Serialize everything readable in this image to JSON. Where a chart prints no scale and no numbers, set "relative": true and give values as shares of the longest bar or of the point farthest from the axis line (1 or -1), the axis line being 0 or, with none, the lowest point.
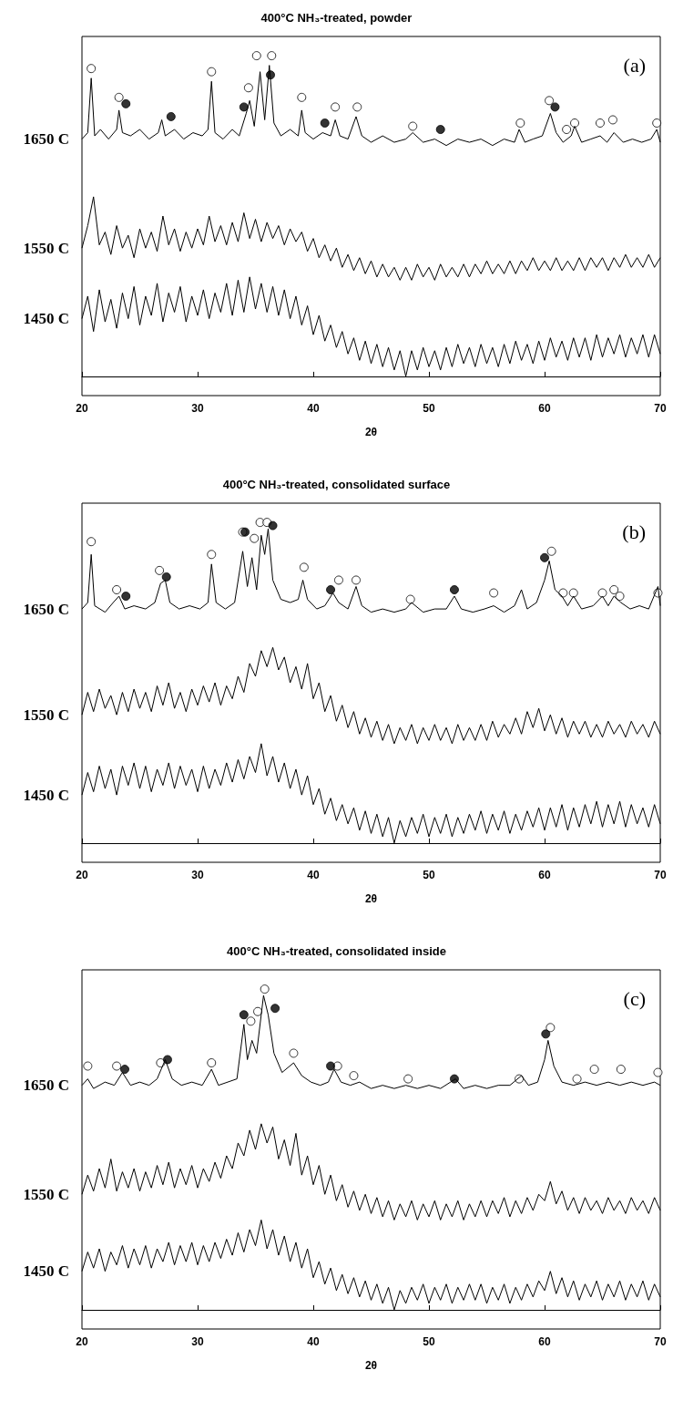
{
  "chart_data": [
    {
      "type": "line",
      "title": "400°C NH₃-treated, powder",
      "xlabel": "2θ",
      "annotations": [
        "(a)"
      ],
      "relative": true,
      "xlim": [
        20,
        70
      ],
      "xticks": [
        20,
        30,
        40,
        50,
        60,
        70
      ],
      "grid": false,
      "legend": false,
      "line_style": "solid",
      "x": [
        20,
        20.5,
        21,
        21.5,
        22,
        22.5,
        23,
        23.5,
        24,
        24.5,
        25,
        25.5,
        26,
        26.5,
        27,
        27.5,
        28,
        28.5,
        29,
        29.5,
        30,
        30.5,
        31,
        31.5,
        32,
        32.5,
        33,
        33.5,
        34,
        34.5,
        35,
        35.5,
        36,
        36.5,
        37,
        37.5,
        38,
        38.5,
        39,
        39.5,
        40,
        40.5,
        41,
        41.5,
        42,
        42.5,
        43,
        43.5,
        44,
        44.5,
        45,
        45.5,
        46,
        46.5,
        47,
        47.5,
        48,
        48.5,
        49,
        49.5,
        50,
        50.5,
        51,
        51.5,
        52,
        52.5,
        53,
        53.5,
        54,
        54.5,
        55,
        55.5,
        56,
        56.5,
        57,
        57.5,
        58,
        58.5,
        59,
        59.5,
        60,
        60.5,
        61,
        61.5,
        62,
        62.5,
        63,
        63.5,
        64,
        64.5,
        65,
        65.5,
        66,
        66.5,
        67,
        67.5,
        68,
        68.5,
        69,
        69.5,
        70
      ],
      "series": [
        {
          "name": "1650 C",
          "color": "#000000",
          "x": [
            20,
            20.5,
            20.8,
            21.1,
            21.6,
            22.3,
            23,
            23.2,
            23.5,
            24.2,
            25,
            25.8,
            26.6,
            26.9,
            27.2,
            28,
            28.8,
            29.6,
            30.4,
            30.9,
            31.2,
            31.5,
            32.2,
            33,
            33.6,
            34.2,
            34.5,
            34.9,
            35.4,
            35.8,
            36.2,
            36.6,
            37.2,
            38,
            38.7,
            39,
            39.3,
            40,
            40.8,
            41.5,
            41.9,
            42.3,
            43,
            43.7,
            44.2,
            45,
            46,
            47,
            48,
            48.6,
            49.5,
            50.5,
            51.5,
            52.5,
            53.5,
            54.5,
            55.5,
            56.5,
            57.4,
            57.8,
            58.3,
            59,
            59.8,
            60.5,
            61,
            61.6,
            62.3,
            62.6,
            63.2,
            64,
            64.8,
            65.4,
            66,
            66.8,
            67.6,
            68.4,
            69.2,
            69.7,
            70
          ],
          "values": [
            0.74,
            0.76,
            0.93,
            0.75,
            0.77,
            0.74,
            0.77,
            0.83,
            0.76,
            0.75,
            0.77,
            0.74,
            0.76,
            0.8,
            0.75,
            0.77,
            0.74,
            0.76,
            0.75,
            0.77,
            0.92,
            0.76,
            0.74,
            0.77,
            0.75,
            0.82,
            0.86,
            0.78,
            0.95,
            0.8,
            0.97,
            0.79,
            0.75,
            0.77,
            0.75,
            0.83,
            0.76,
            0.74,
            0.76,
            0.75,
            0.8,
            0.75,
            0.74,
            0.81,
            0.75,
            0.73,
            0.75,
            0.73,
            0.74,
            0.76,
            0.73,
            0.74,
            0.72,
            0.74,
            0.73,
            0.74,
            0.72,
            0.74,
            0.73,
            0.77,
            0.73,
            0.74,
            0.75,
            0.82,
            0.76,
            0.73,
            0.75,
            0.78,
            0.73,
            0.74,
            0.75,
            0.73,
            0.76,
            0.73,
            0.74,
            0.73,
            0.74,
            0.77,
            0.73
          ]
        },
        {
          "name": "1550 C",
          "color": "#000000",
          "values": [
            0.4,
            0.47,
            0.56,
            0.41,
            0.45,
            0.38,
            0.47,
            0.4,
            0.44,
            0.37,
            0.46,
            0.4,
            0.45,
            0.39,
            0.5,
            0.41,
            0.46,
            0.39,
            0.45,
            0.4,
            0.46,
            0.41,
            0.5,
            0.42,
            0.47,
            0.41,
            0.48,
            0.42,
            0.51,
            0.43,
            0.49,
            0.42,
            0.48,
            0.43,
            0.47,
            0.41,
            0.46,
            0.42,
            0.45,
            0.39,
            0.43,
            0.37,
            0.41,
            0.36,
            0.4,
            0.34,
            0.38,
            0.33,
            0.37,
            0.32,
            0.36,
            0.31,
            0.35,
            0.31,
            0.34,
            0.3,
            0.34,
            0.3,
            0.35,
            0.31,
            0.34,
            0.3,
            0.35,
            0.31,
            0.34,
            0.31,
            0.35,
            0.31,
            0.35,
            0.32,
            0.36,
            0.32,
            0.35,
            0.32,
            0.36,
            0.32,
            0.36,
            0.33,
            0.37,
            0.33,
            0.36,
            0.33,
            0.37,
            0.33,
            0.36,
            0.33,
            0.37,
            0.33,
            0.37,
            0.34,
            0.37,
            0.33,
            0.37,
            0.34,
            0.38,
            0.34,
            0.37,
            0.34,
            0.38,
            0.34,
            0.37
          ]
        },
        {
          "name": "1450 C",
          "color": "#000000",
          "values": [
            0.18,
            0.25,
            0.14,
            0.27,
            0.17,
            0.24,
            0.15,
            0.26,
            0.18,
            0.28,
            0.16,
            0.25,
            0.19,
            0.29,
            0.17,
            0.26,
            0.2,
            0.28,
            0.17,
            0.25,
            0.19,
            0.27,
            0.18,
            0.26,
            0.2,
            0.29,
            0.19,
            0.3,
            0.2,
            0.31,
            0.21,
            0.29,
            0.2,
            0.28,
            0.19,
            0.27,
            0.18,
            0.25,
            0.16,
            0.22,
            0.13,
            0.19,
            0.11,
            0.16,
            0.09,
            0.14,
            0.07,
            0.12,
            0.05,
            0.11,
            0.04,
            0.1,
            0.03,
            0.09,
            0.02,
            0.08,
            0.0,
            0.08,
            0.02,
            0.09,
            0.03,
            0.08,
            0.02,
            0.09,
            0.03,
            0.1,
            0.04,
            0.09,
            0.03,
            0.1,
            0.04,
            0.09,
            0.03,
            0.1,
            0.04,
            0.11,
            0.05,
            0.1,
            0.04,
            0.11,
            0.05,
            0.12,
            0.06,
            0.11,
            0.05,
            0.12,
            0.06,
            0.12,
            0.05,
            0.13,
            0.06,
            0.12,
            0.07,
            0.13,
            0.06,
            0.12,
            0.07,
            0.13,
            0.06,
            0.13,
            0.07
          ]
        },
        {
          "type": "scatter",
          "marker": "circle",
          "color": "#ffffff",
          "x": [
            20.8,
            23.2,
            31.2,
            34.4,
            35.1,
            36.4,
            39.0,
            41.9,
            43.8,
            48.6,
            57.9,
            60.4,
            61.9,
            62.6,
            64.8,
            65.9,
            69.7
          ],
          "values": [
            0.96,
            0.87,
            0.95,
            0.9,
            1.0,
            1.0,
            0.87,
            0.84,
            0.84,
            0.78,
            0.79,
            0.86,
            0.77,
            0.79,
            0.79,
            0.8,
            0.79
          ]
        },
        {
          "type": "scatter",
          "marker": "circle",
          "color": "#000000",
          "x": [
            23.8,
            27.7,
            34.0,
            36.3,
            41.0,
            51.0,
            60.9
          ],
          "values": [
            0.85,
            0.81,
            0.84,
            0.94,
            0.79,
            0.77,
            0.84
          ]
        }
      ]
    },
    {
      "type": "line",
      "title": "400°C NH₃-treated, consolidated surface",
      "xlabel": "2θ",
      "annotations": [
        "(b)"
      ],
      "relative": true,
      "xlim": [
        20,
        70
      ],
      "xticks": [
        20,
        30,
        40,
        50,
        60,
        70
      ],
      "grid": false,
      "legend": false,
      "line_style": "solid",
      "x": [
        20,
        20.5,
        21,
        21.5,
        22,
        22.5,
        23,
        23.5,
        24,
        24.5,
        25,
        25.5,
        26,
        26.5,
        27,
        27.5,
        28,
        28.5,
        29,
        29.5,
        30,
        30.5,
        31,
        31.5,
        32,
        32.5,
        33,
        33.5,
        34,
        34.5,
        35,
        35.5,
        36,
        36.5,
        37,
        37.5,
        38,
        38.5,
        39,
        39.5,
        40,
        40.5,
        41,
        41.5,
        42,
        42.5,
        43,
        43.5,
        44,
        44.5,
        45,
        45.5,
        46,
        46.5,
        47,
        47.5,
        48,
        48.5,
        49,
        49.5,
        50,
        50.5,
        51,
        51.5,
        52,
        52.5,
        53,
        53.5,
        54,
        54.5,
        55,
        55.5,
        56,
        56.5,
        57,
        57.5,
        58,
        58.5,
        59,
        59.5,
        60,
        60.5,
        61,
        61.5,
        62,
        62.5,
        63,
        63.5,
        64,
        64.5,
        65,
        65.5,
        66,
        66.5,
        67,
        67.5,
        68,
        68.5,
        69,
        69.5,
        70
      ],
      "series": [
        {
          "name": "1650 C",
          "color": "#000000",
          "x": [
            20,
            20.5,
            20.8,
            21.1,
            22,
            22.7,
            23.2,
            23.7,
            24.5,
            25.5,
            26.3,
            26.8,
            27.2,
            27.6,
            28.4,
            29.3,
            30.2,
            30.9,
            31.2,
            31.6,
            32.4,
            33.2,
            33.9,
            34.3,
            34.7,
            35.1,
            35.5,
            35.8,
            36.1,
            36.5,
            37.2,
            38,
            38.7,
            39.1,
            39.5,
            40.3,
            41,
            41.7,
            42.2,
            43,
            43.7,
            44.2,
            45,
            46,
            47,
            48,
            48.5,
            49.5,
            50.5,
            51.5,
            52.2,
            52.8,
            53.8,
            54.8,
            55.6,
            56.5,
            57.4,
            58,
            58.5,
            59.3,
            60,
            60.4,
            60.9,
            61.5,
            62,
            62.5,
            63.2,
            64.2,
            65,
            65.5,
            66,
            66.6,
            67.4,
            68.2,
            69,
            69.8,
            70
          ],
          "values": [
            0.73,
            0.75,
            0.9,
            0.74,
            0.72,
            0.75,
            0.77,
            0.73,
            0.74,
            0.73,
            0.75,
            0.81,
            0.82,
            0.75,
            0.73,
            0.74,
            0.73,
            0.75,
            0.87,
            0.75,
            0.73,
            0.75,
            0.91,
            0.8,
            0.89,
            0.79,
            0.96,
            0.9,
            0.98,
            0.82,
            0.76,
            0.75,
            0.76,
            0.82,
            0.76,
            0.73,
            0.74,
            0.78,
            0.75,
            0.73,
            0.8,
            0.74,
            0.72,
            0.73,
            0.72,
            0.73,
            0.75,
            0.72,
            0.73,
            0.73,
            0.77,
            0.73,
            0.72,
            0.73,
            0.74,
            0.72,
            0.74,
            0.79,
            0.73,
            0.75,
            0.82,
            0.88,
            0.79,
            0.77,
            0.74,
            0.77,
            0.73,
            0.74,
            0.77,
            0.74,
            0.77,
            0.75,
            0.73,
            0.74,
            0.73,
            0.8,
            0.74
          ]
        },
        {
          "name": "1550 C",
          "color": "#000000",
          "values": [
            0.4,
            0.47,
            0.41,
            0.48,
            0.42,
            0.46,
            0.4,
            0.47,
            0.41,
            0.48,
            0.42,
            0.47,
            0.41,
            0.49,
            0.43,
            0.5,
            0.42,
            0.47,
            0.41,
            0.48,
            0.43,
            0.49,
            0.44,
            0.5,
            0.43,
            0.49,
            0.45,
            0.52,
            0.47,
            0.56,
            0.52,
            0.6,
            0.55,
            0.61,
            0.54,
            0.58,
            0.5,
            0.55,
            0.48,
            0.56,
            0.45,
            0.5,
            0.41,
            0.46,
            0.38,
            0.43,
            0.36,
            0.41,
            0.34,
            0.39,
            0.33,
            0.38,
            0.32,
            0.37,
            0.31,
            0.36,
            0.32,
            0.37,
            0.31,
            0.36,
            0.32,
            0.37,
            0.32,
            0.36,
            0.31,
            0.37,
            0.32,
            0.36,
            0.32,
            0.37,
            0.32,
            0.38,
            0.33,
            0.37,
            0.34,
            0.39,
            0.34,
            0.41,
            0.36,
            0.42,
            0.35,
            0.4,
            0.34,
            0.39,
            0.33,
            0.38,
            0.34,
            0.38,
            0.33,
            0.37,
            0.33,
            0.38,
            0.34,
            0.37,
            0.33,
            0.38,
            0.34,
            0.37,
            0.33,
            0.38,
            0.34
          ]
        },
        {
          "name": "1450 C",
          "color": "#000000",
          "values": [
            0.15,
            0.22,
            0.16,
            0.24,
            0.17,
            0.23,
            0.15,
            0.24,
            0.18,
            0.25,
            0.17,
            0.24,
            0.16,
            0.23,
            0.18,
            0.25,
            0.17,
            0.24,
            0.18,
            0.23,
            0.16,
            0.24,
            0.17,
            0.23,
            0.18,
            0.25,
            0.19,
            0.26,
            0.2,
            0.27,
            0.22,
            0.31,
            0.21,
            0.27,
            0.19,
            0.25,
            0.17,
            0.23,
            0.15,
            0.21,
            0.12,
            0.17,
            0.09,
            0.14,
            0.07,
            0.12,
            0.06,
            0.11,
            0.04,
            0.1,
            0.03,
            0.09,
            0.02,
            0.08,
            0.0,
            0.07,
            0.02,
            0.08,
            0.03,
            0.09,
            0.02,
            0.08,
            0.03,
            0.09,
            0.02,
            0.08,
            0.03,
            0.09,
            0.04,
            0.1,
            0.03,
            0.09,
            0.04,
            0.1,
            0.03,
            0.09,
            0.04,
            0.1,
            0.05,
            0.11,
            0.04,
            0.11,
            0.05,
            0.12,
            0.04,
            0.11,
            0.05,
            0.12,
            0.06,
            0.13,
            0.05,
            0.12,
            0.06,
            0.13,
            0.05,
            0.12,
            0.06,
            0.11,
            0.05,
            0.12,
            0.06
          ]
        },
        {
          "type": "scatter",
          "marker": "circle",
          "color": "#ffffff",
          "x": [
            20.8,
            23.0,
            26.7,
            31.2,
            33.9,
            34.9,
            35.4,
            36.0,
            39.2,
            42.2,
            43.7,
            48.4,
            55.6,
            60.6,
            61.6,
            62.5,
            65.0,
            66.0,
            66.5,
            69.8
          ],
          "values": [
            0.94,
            0.79,
            0.85,
            0.9,
            0.97,
            0.95,
            1.0,
            1.0,
            0.86,
            0.82,
            0.82,
            0.76,
            0.78,
            0.91,
            0.78,
            0.78,
            0.78,
            0.79,
            0.77,
            0.78
          ]
        },
        {
          "type": "scatter",
          "marker": "circle",
          "color": "#000000",
          "x": [
            23.8,
            27.3,
            34.1,
            36.5,
            41.5,
            52.2,
            60.0
          ],
          "values": [
            0.77,
            0.83,
            0.97,
            0.99,
            0.79,
            0.79,
            0.89
          ]
        }
      ]
    },
    {
      "type": "line",
      "title": "400°C NH₃-treated, consolidated inside",
      "xlabel": "2θ",
      "annotations": [
        "(c)"
      ],
      "relative": true,
      "xlim": [
        20,
        70
      ],
      "xticks": [
        20,
        30,
        40,
        50,
        60,
        70
      ],
      "grid": false,
      "legend": false,
      "line_style": "solid",
      "x": [
        20,
        20.5,
        21,
        21.5,
        22,
        22.5,
        23,
        23.5,
        24,
        24.5,
        25,
        25.5,
        26,
        26.5,
        27,
        27.5,
        28,
        28.5,
        29,
        29.5,
        30,
        30.5,
        31,
        31.5,
        32,
        32.5,
        33,
        33.5,
        34,
        34.5,
        35,
        35.5,
        36,
        36.5,
        37,
        37.5,
        38,
        38.5,
        39,
        39.5,
        40,
        40.5,
        41,
        41.5,
        42,
        42.5,
        43,
        43.5,
        44,
        44.5,
        45,
        45.5,
        46,
        46.5,
        47,
        47.5,
        48,
        48.5,
        49,
        49.5,
        50,
        50.5,
        51,
        51.5,
        52,
        52.5,
        53,
        53.5,
        54,
        54.5,
        55,
        55.5,
        56,
        56.5,
        57,
        57.5,
        58,
        58.5,
        59,
        59.5,
        60,
        60.5,
        61,
        61.5,
        62,
        62.5,
        63,
        63.5,
        64,
        64.5,
        65,
        65.5,
        66,
        66.5,
        67,
        67.5,
        68,
        68.5,
        69,
        69.5,
        70
      ],
      "series": [
        {
          "name": "1650 C",
          "color": "#000000",
          "x": [
            20,
            20.5,
            21,
            22,
            22.8,
            23.5,
            24.2,
            25,
            25.8,
            26.5,
            27.2,
            27.8,
            28.6,
            29.5,
            30.4,
            31.2,
            31.8,
            32.6,
            33.4,
            34,
            34.3,
            34.7,
            35.1,
            35.7,
            36.1,
            36.6,
            37.3,
            38.3,
            39,
            39.8,
            40.6,
            41.3,
            41.8,
            42.4,
            43.2,
            44,
            45,
            46,
            47,
            48,
            49,
            50,
            51,
            52.3,
            53,
            54,
            55,
            56,
            57,
            58,
            58.6,
            59.4,
            60,
            60.3,
            60.8,
            61.5,
            62.5,
            63.5,
            64.5,
            65.5,
            66.5,
            67.5,
            68.5,
            69.5,
            70
          ],
          "values": [
            0.7,
            0.72,
            0.69,
            0.71,
            0.7,
            0.74,
            0.7,
            0.71,
            0.7,
            0.72,
            0.78,
            0.72,
            0.7,
            0.71,
            0.7,
            0.75,
            0.7,
            0.71,
            0.72,
            0.89,
            0.78,
            0.84,
            0.8,
            0.98,
            0.92,
            0.8,
            0.74,
            0.77,
            0.73,
            0.71,
            0.7,
            0.71,
            0.75,
            0.71,
            0.7,
            0.71,
            0.69,
            0.7,
            0.69,
            0.7,
            0.69,
            0.7,
            0.69,
            0.72,
            0.69,
            0.7,
            0.69,
            0.7,
            0.7,
            0.73,
            0.7,
            0.71,
            0.78,
            0.84,
            0.76,
            0.71,
            0.7,
            0.71,
            0.7,
            0.71,
            0.7,
            0.71,
            0.7,
            0.71,
            0.7
          ]
        },
        {
          "name": "1550 C",
          "color": "#000000",
          "values": [
            0.36,
            0.42,
            0.37,
            0.44,
            0.38,
            0.47,
            0.37,
            0.43,
            0.38,
            0.44,
            0.37,
            0.43,
            0.38,
            0.45,
            0.39,
            0.46,
            0.38,
            0.44,
            0.39,
            0.45,
            0.38,
            0.44,
            0.4,
            0.46,
            0.41,
            0.48,
            0.44,
            0.52,
            0.48,
            0.56,
            0.5,
            0.58,
            0.52,
            0.57,
            0.47,
            0.53,
            0.45,
            0.55,
            0.42,
            0.48,
            0.39,
            0.45,
            0.36,
            0.42,
            0.34,
            0.39,
            0.32,
            0.37,
            0.31,
            0.36,
            0.3,
            0.35,
            0.29,
            0.34,
            0.28,
            0.33,
            0.29,
            0.34,
            0.28,
            0.33,
            0.29,
            0.34,
            0.28,
            0.33,
            0.29,
            0.34,
            0.28,
            0.33,
            0.29,
            0.34,
            0.29,
            0.34,
            0.3,
            0.35,
            0.29,
            0.34,
            0.3,
            0.35,
            0.31,
            0.36,
            0.34,
            0.4,
            0.33,
            0.37,
            0.31,
            0.35,
            0.3,
            0.35,
            0.31,
            0.34,
            0.3,
            0.35,
            0.31,
            0.34,
            0.3,
            0.35,
            0.31,
            0.34,
            0.3,
            0.35,
            0.31
          ]
        },
        {
          "name": "1450 C",
          "color": "#000000",
          "values": [
            0.12,
            0.18,
            0.13,
            0.19,
            0.12,
            0.18,
            0.14,
            0.2,
            0.13,
            0.19,
            0.14,
            0.2,
            0.13,
            0.19,
            0.15,
            0.21,
            0.14,
            0.2,
            0.15,
            0.21,
            0.14,
            0.2,
            0.15,
            0.21,
            0.16,
            0.22,
            0.17,
            0.24,
            0.18,
            0.25,
            0.2,
            0.28,
            0.19,
            0.25,
            0.17,
            0.23,
            0.15,
            0.21,
            0.13,
            0.19,
            0.1,
            0.15,
            0.08,
            0.13,
            0.06,
            0.11,
            0.05,
            0.1,
            0.04,
            0.09,
            0.03,
            0.08,
            0.02,
            0.07,
            0.0,
            0.06,
            0.02,
            0.07,
            0.03,
            0.08,
            0.02,
            0.07,
            0.03,
            0.08,
            0.02,
            0.07,
            0.03,
            0.08,
            0.03,
            0.08,
            0.02,
            0.07,
            0.03,
            0.08,
            0.02,
            0.07,
            0.03,
            0.08,
            0.04,
            0.09,
            0.06,
            0.12,
            0.05,
            0.1,
            0.04,
            0.09,
            0.03,
            0.08,
            0.04,
            0.09,
            0.03,
            0.08,
            0.04,
            0.09,
            0.03,
            0.08,
            0.04,
            0.09,
            0.03,
            0.08,
            0.04
          ]
        },
        {
          "type": "scatter",
          "marker": "circle",
          "color": "#ffffff",
          "x": [
            20.5,
            23.0,
            26.8,
            31.2,
            34.6,
            35.2,
            35.8,
            38.3,
            42.1,
            43.5,
            48.2,
            57.8,
            60.5,
            62.8,
            64.3,
            66.6,
            69.8
          ],
          "values": [
            0.76,
            0.76,
            0.77,
            0.77,
            0.9,
            0.93,
            1.0,
            0.8,
            0.76,
            0.73,
            0.72,
            0.72,
            0.88,
            0.72,
            0.75,
            0.75,
            0.74
          ]
        },
        {
          "type": "scatter",
          "marker": "circle",
          "color": "#000000",
          "x": [
            23.7,
            27.4,
            34.0,
            36.7,
            41.5,
            52.2,
            60.1
          ],
          "values": [
            0.75,
            0.78,
            0.92,
            0.94,
            0.76,
            0.72,
            0.86
          ]
        }
      ]
    }
  ]
}
